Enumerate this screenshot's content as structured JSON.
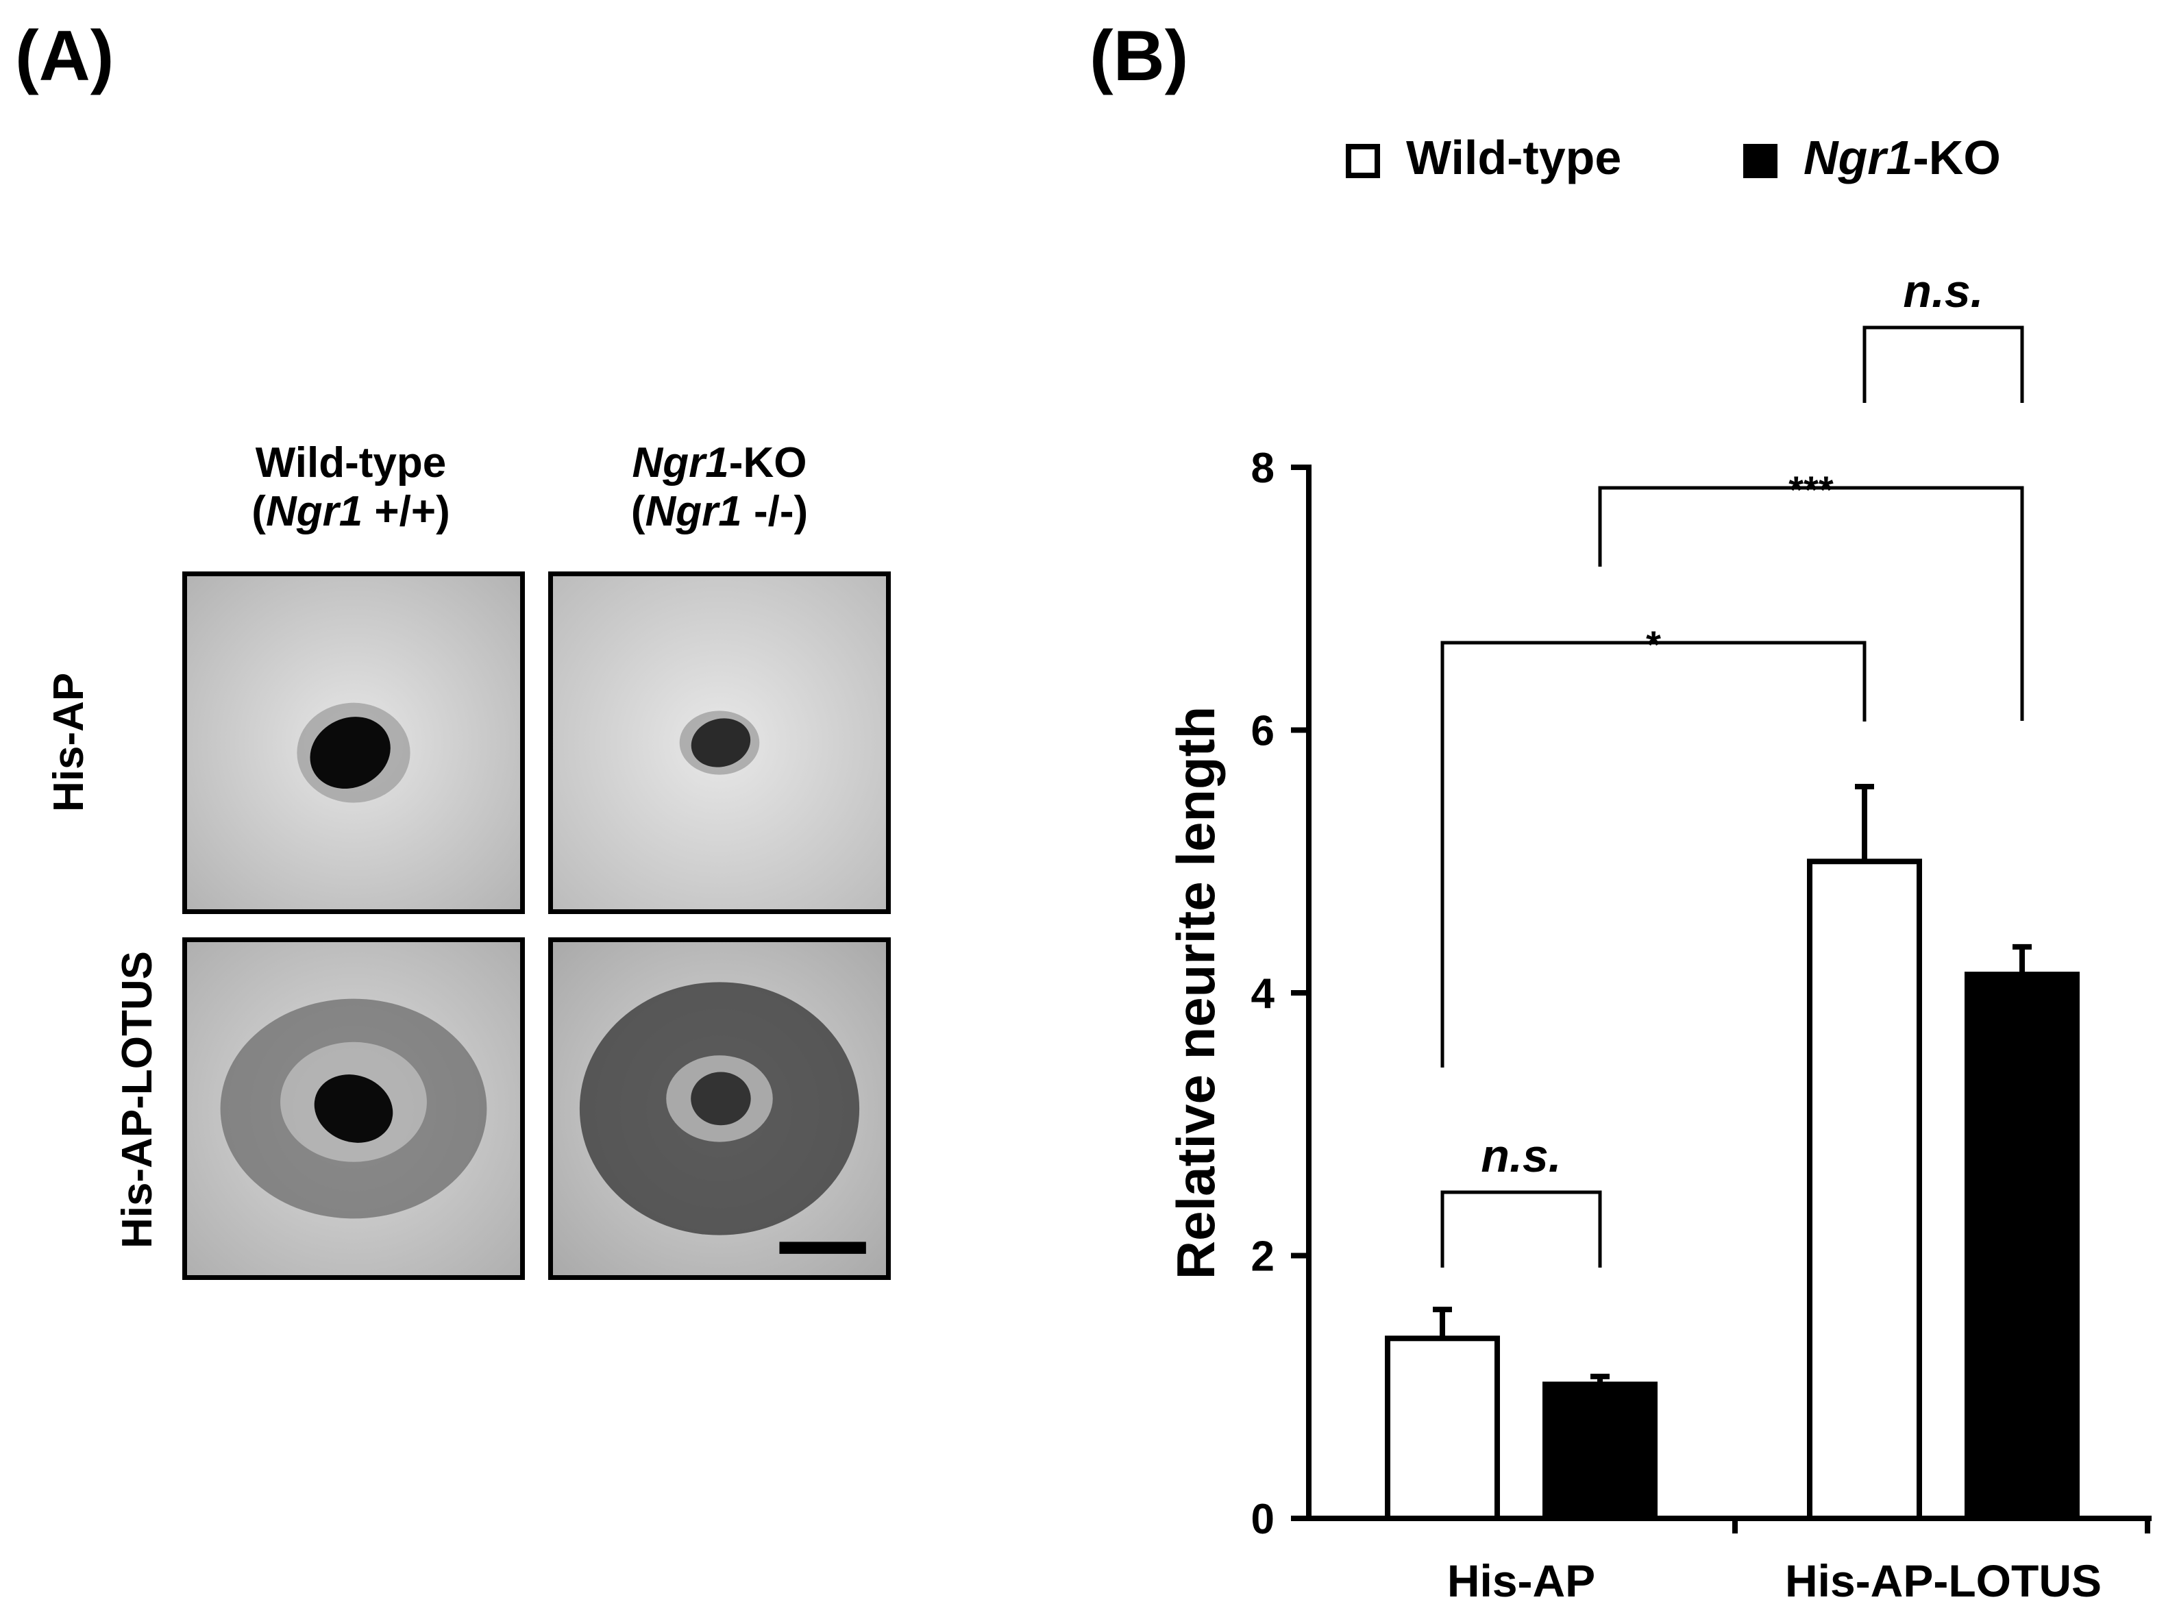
{
  "panels": {
    "a": {
      "label": "(A)",
      "col_headers": [
        {
          "line1": "Wild-type",
          "line2_open": "(",
          "line2_italic": "Ngr1",
          "line2_rest": " +/+)"
        },
        {
          "line1_italic": "Ngr1",
          "line1_rest": "-KO",
          "line2_open": "(",
          "line2_italic": "Ngr1",
          "line2_rest": " -/-)"
        }
      ],
      "row_headers": [
        "His-AP",
        "His-AP-LOTUS"
      ]
    },
    "b": {
      "label": "(B)",
      "legend": [
        {
          "italic": "",
          "text": "Wild-type",
          "color": "#ffffff"
        },
        {
          "italic": "Ngr1",
          "text": "-KO",
          "color": "#000000"
        }
      ]
    }
  },
  "chart_data": {
    "type": "bar",
    "categories": [
      "His-AP",
      "His-AP-LOTUS"
    ],
    "series": [
      {
        "name": "Wild-type",
        "values": [
          1.37,
          5.0
        ],
        "errors": [
          0.22,
          0.57
        ],
        "color": "#ffffff"
      },
      {
        "name": "Ngr1-KO",
        "values": [
          1.02,
          4.14
        ],
        "errors": [
          0.06,
          0.21
        ],
        "color": "#000000"
      }
    ],
    "ylabel": "Relative neurite length",
    "ylim": [
      0,
      8
    ],
    "yticks": [
      "0",
      "2",
      "4",
      "6",
      "8"
    ],
    "grid": false,
    "legend_position": "top",
    "significance": [
      {
        "label": "n.s.",
        "from": "His-AP/Wild-type",
        "to": "His-AP/Ngr1-KO",
        "italic": true
      },
      {
        "label": "*",
        "from": "His-AP/Wild-type",
        "to": "His-AP-LOTUS/Wild-type",
        "italic": false
      },
      {
        "label": "***",
        "from": "His-AP/Ngr1-KO",
        "to": "His-AP-LOTUS/Ngr1-KO",
        "italic": false
      },
      {
        "label": "n.s.",
        "from": "His-AP-LOTUS/Wild-type",
        "to": "His-AP-LOTUS/Ngr1-KO",
        "italic": true
      }
    ]
  }
}
